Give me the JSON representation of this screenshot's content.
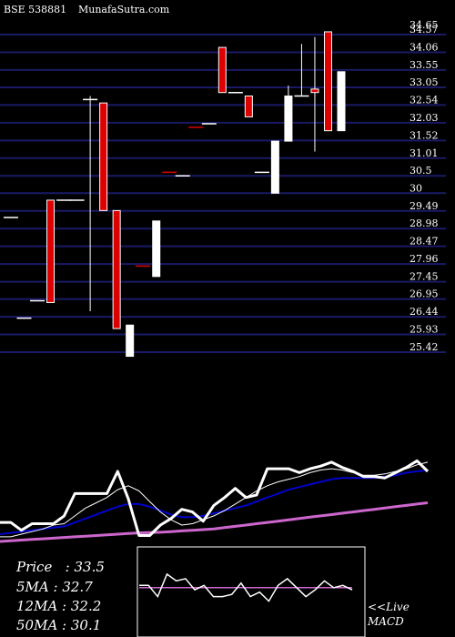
{
  "header": {
    "symbol": "BSE 538881",
    "site": "MunafaSutra.com"
  },
  "info": {
    "price_label": "Price",
    "price": "33.5",
    "ma5_label": "5MA",
    "ma5": "32.7",
    "ma12_label": "12MA",
    "ma12": "32.2",
    "ma50_label": "50MA",
    "ma50": "30.1"
  },
  "live_label": "<<Live",
  "macd_label": "MACD",
  "chart_data": {
    "type": "candlestick",
    "y_ticks": [
      34.57,
      34.06,
      33.55,
      33.05,
      32.54,
      32.03,
      31.52,
      31.01,
      30.5,
      30,
      29.49,
      28.98,
      28.47,
      27.96,
      27.45,
      26.95,
      26.44,
      25.93,
      25.42
    ],
    "y_tick_labels": [
      "34.57",
      "34.06",
      "33.55",
      "33.05",
      "32.54",
      "32.03",
      "31.52",
      "31.01",
      "30.5",
      "30",
      "29.49",
      "28.98",
      "28.47",
      "27.96",
      "27.45",
      "26.95",
      "26.44",
      "25.93",
      "25.42"
    ],
    "top_label": "34.65",
    "ylim": [
      25.2,
      34.9
    ],
    "candles": [
      {
        "o": 29.3,
        "h": 29.3,
        "l": 29.3,
        "c": 29.3,
        "color": "white"
      },
      {
        "o": 26.4,
        "h": 26.4,
        "l": 26.4,
        "c": 26.4,
        "color": "white"
      },
      {
        "o": 26.9,
        "h": 26.9,
        "l": 26.9,
        "c": 26.9,
        "color": "white"
      },
      {
        "o": 26.85,
        "h": 29.8,
        "l": 26.85,
        "c": 29.8,
        "color": "red"
      },
      {
        "o": 29.8,
        "h": 29.8,
        "l": 29.8,
        "c": 29.8,
        "color": "white"
      },
      {
        "o": 29.8,
        "h": 29.8,
        "l": 29.8,
        "c": 29.8,
        "color": "white"
      },
      {
        "o": 32.7,
        "h": 32.8,
        "l": 26.6,
        "c": 32.7,
        "color": "white"
      },
      {
        "o": 32.6,
        "h": 32.6,
        "l": 29.5,
        "c": 29.5,
        "color": "red"
      },
      {
        "o": 29.5,
        "h": 29.5,
        "l": 26.1,
        "c": 26.1,
        "color": "red"
      },
      {
        "o": 26.2,
        "h": 26.2,
        "l": 25.3,
        "c": 25.3,
        "color": "white"
      },
      {
        "o": 27.9,
        "h": 27.9,
        "l": 27.9,
        "c": 27.9,
        "color": "red"
      },
      {
        "o": 27.6,
        "h": 29.2,
        "l": 27.6,
        "c": 29.2,
        "color": "white"
      },
      {
        "o": 30.6,
        "h": 30.6,
        "l": 30.6,
        "c": 30.6,
        "color": "red"
      },
      {
        "o": 30.5,
        "h": 30.5,
        "l": 30.5,
        "c": 30.5,
        "color": "white"
      },
      {
        "o": 31.9,
        "h": 31.9,
        "l": 31.9,
        "c": 31.9,
        "color": "red"
      },
      {
        "o": 32.0,
        "h": 32.0,
        "l": 32.0,
        "c": 32.0,
        "color": "white"
      },
      {
        "o": 34.2,
        "h": 34.2,
        "l": 32.9,
        "c": 32.9,
        "color": "red"
      },
      {
        "o": 32.9,
        "h": 32.9,
        "l": 32.9,
        "c": 32.9,
        "color": "white"
      },
      {
        "o": 32.8,
        "h": 32.8,
        "l": 32.2,
        "c": 32.2,
        "color": "red"
      },
      {
        "o": 30.6,
        "h": 30.6,
        "l": 30.6,
        "c": 30.6,
        "color": "white"
      },
      {
        "o": 30.0,
        "h": 31.5,
        "l": 30.0,
        "c": 31.5,
        "color": "white"
      },
      {
        "o": 31.5,
        "h": 33.1,
        "l": 31.5,
        "c": 32.8,
        "color": "white"
      },
      {
        "o": 32.8,
        "h": 34.3,
        "l": 32.8,
        "c": 32.8,
        "color": "white"
      },
      {
        "o": 32.9,
        "h": 34.5,
        "l": 31.2,
        "c": 33.0,
        "color": "red"
      },
      {
        "o": 34.65,
        "h": 34.65,
        "l": 31.8,
        "c": 31.8,
        "color": "red"
      },
      {
        "o": 31.8,
        "h": 33.5,
        "l": 31.8,
        "c": 33.5,
        "color": "white"
      }
    ],
    "price_line": [
      27.0,
      27.0,
      26.4,
      26.9,
      26.9,
      26.9,
      27.5,
      29.2,
      29.2,
      29.2,
      29.2,
      30.9,
      28.8,
      26.0,
      26.0,
      26.8,
      27.3,
      28.0,
      27.8,
      27.1,
      28.3,
      28.9,
      29.6,
      28.9,
      29.1,
      31.1,
      31.1,
      31.1,
      30.8,
      31.1,
      31.3,
      31.6,
      31.2,
      30.9,
      30.5,
      30.5,
      30.4,
      30.8,
      31.2,
      31.7,
      30.9
    ],
    "ma5": [
      25.9,
      25.9,
      26.1,
      26.3,
      26.5,
      26.8,
      26.9,
      27.5,
      28.1,
      28.5,
      28.9,
      29.5,
      29.8,
      29.4,
      28.6,
      27.8,
      27.2,
      26.8,
      26.9,
      27.2,
      27.5,
      27.9,
      28.4,
      28.9,
      29.4,
      29.8,
      30.1,
      30.3,
      30.5,
      30.8,
      31.0,
      31.1,
      31.0,
      30.8,
      30.6,
      30.6,
      30.7,
      30.9,
      31.1,
      31.4,
      31.6
    ],
    "ma12": [
      26.1,
      26.2,
      26.3,
      26.4,
      26.5,
      26.6,
      26.7,
      27.0,
      27.3,
      27.6,
      27.9,
      28.2,
      28.4,
      28.4,
      28.2,
      27.9,
      27.6,
      27.4,
      27.4,
      27.5,
      27.7,
      27.9,
      28.1,
      28.3,
      28.6,
      28.9,
      29.2,
      29.5,
      29.7,
      29.9,
      30.1,
      30.3,
      30.4,
      30.4,
      30.4,
      30.4,
      30.5,
      30.6,
      30.8,
      30.9,
      31.0
    ],
    "ma50": [
      25.55,
      25.6,
      25.65,
      25.7,
      25.75,
      25.8,
      25.85,
      25.9,
      25.95,
      26.0,
      26.05,
      26.1,
      26.15,
      26.2,
      26.22,
      26.25,
      26.3,
      26.35,
      26.4,
      26.45,
      26.5,
      26.6,
      26.7,
      26.8,
      26.9,
      27.0,
      27.1,
      27.2,
      27.3,
      27.4,
      27.5,
      27.6,
      27.7,
      27.8,
      27.9,
      28.0,
      28.1,
      28.2,
      28.3,
      28.4,
      28.5
    ],
    "macd_line": [
      0.55,
      0.55,
      0.3,
      0.8,
      0.65,
      0.7,
      0.45,
      0.55,
      0.3,
      0.3,
      0.35,
      0.6,
      0.3,
      0.4,
      0.2,
      0.55,
      0.7,
      0.5,
      0.3,
      0.45,
      0.65,
      0.5,
      0.55,
      0.45
    ],
    "macd_signal": [
      0.5,
      0.5,
      0.5,
      0.5,
      0.5,
      0.5,
      0.5,
      0.5,
      0.5,
      0.5,
      0.5,
      0.5,
      0.5,
      0.5,
      0.5,
      0.5,
      0.5,
      0.5,
      0.5,
      0.5,
      0.5,
      0.5,
      0.5,
      0.5
    ],
    "colors": {
      "grid": "#1a1a66",
      "up": "#ffffff",
      "down": "#dd0000",
      "price_line": "#ffffff",
      "ma5": "#ffffff",
      "ma12": "#0000cc",
      "ma50": "#cc66cc",
      "macd_line": "#ffffff",
      "macd_signal": "#cc66cc"
    }
  }
}
